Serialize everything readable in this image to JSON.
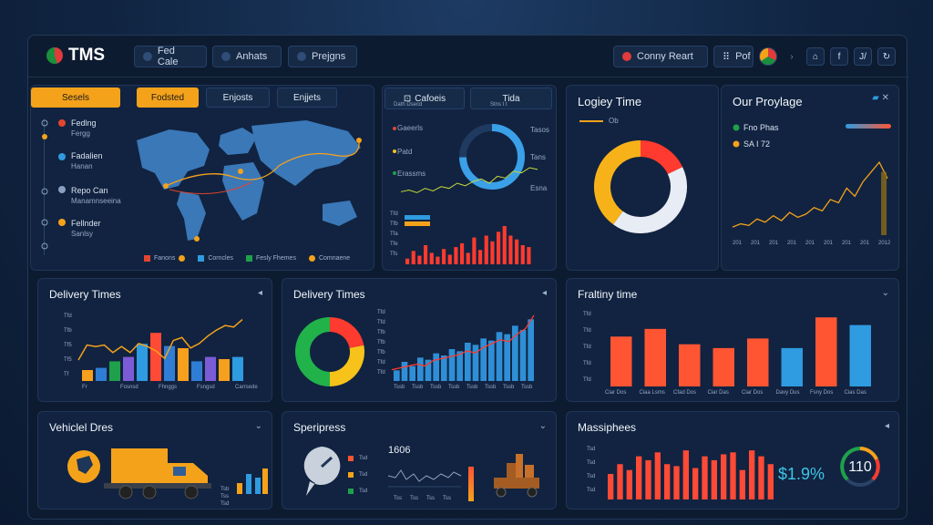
{
  "header": {
    "logo_text": "TMS",
    "nav": [
      "Fed Cale",
      "Anhats",
      "Prejgns"
    ],
    "right_btn": "Conny Reart",
    "right_btn2": "Pof",
    "right_btn3": "f",
    "right_btn4": "J/"
  },
  "map_panel": {
    "side_tab": "Sesels",
    "tabs": [
      "Fodsted",
      "Enjosts",
      "Enjjets"
    ],
    "side_items": [
      {
        "label": "Fedlng",
        "sub": "Fergg"
      },
      {
        "label": "Fadalien",
        "sub": "Hanan"
      },
      {
        "label": "Repo Can",
        "sub": "Manamnseeina"
      },
      {
        "label": "Fellnder",
        "sub": "Sanlsy"
      }
    ],
    "legend": [
      "Fanons",
      "Corncles",
      "Fesly Fhemes",
      "Comnaene"
    ]
  },
  "stats_panel": {
    "tabs": [
      "Cafoeis",
      "Tida"
    ],
    "subtabs": [
      "Dath Dsecd",
      "Stns t t"
    ],
    "labels": [
      "Gaeerls",
      "Patd",
      "Erassms"
    ],
    "right_labels": [
      "Tasos",
      "Tans",
      "Esna"
    ],
    "ticks": [
      "Tfd",
      "Tfb",
      "Tfa",
      "Tfe",
      "Tfs"
    ],
    "bars": [
      6,
      14,
      9,
      20,
      12,
      8,
      16,
      10,
      18,
      22,
      12,
      28,
      15,
      30,
      24,
      34,
      40,
      30,
      26,
      20,
      18
    ],
    "line": [
      8,
      10,
      7,
      12,
      9,
      14,
      12,
      18,
      15,
      20,
      23,
      18,
      26,
      24,
      32,
      30,
      36,
      34
    ]
  },
  "logic_panel": {
    "title": "Logiey Time",
    "legend": "Ob",
    "donut": [
      {
        "color": "#ff3a2e",
        "value": 18
      },
      {
        "color": "#e8ecf4",
        "value": 42
      },
      {
        "color": "#f7b21a",
        "value": 40
      }
    ]
  },
  "prop_panel": {
    "title": "Our Proylage",
    "item1": "Fno Phas",
    "item2": "SA I 72",
    "xticks": [
      "201",
      "201",
      "201",
      "201",
      "201",
      "201",
      "201",
      "201",
      "2012"
    ],
    "line": [
      10,
      14,
      12,
      20,
      16,
      24,
      18,
      28,
      22,
      26,
      34,
      30,
      44,
      40,
      58,
      48,
      66,
      78,
      90,
      70
    ]
  },
  "delivery1": {
    "title": "Delivery Times",
    "yticks": [
      "Tfd",
      "Tfb",
      "Tf5",
      "Tf5",
      "Tf"
    ],
    "xticks": [
      "Fr",
      "Fosnsd",
      "Fhnggs",
      "Fsngsd",
      "Carrsede"
    ],
    "bars": [
      {
        "v": 10,
        "c": "#f7a01d"
      },
      {
        "v": 12,
        "c": "#2f7dd4"
      },
      {
        "v": 18,
        "c": "#1ea14a"
      },
      {
        "v": 22,
        "c": "#7b5cd6"
      },
      {
        "v": 34,
        "c": "#2f9be0"
      },
      {
        "v": 44,
        "c": "#ff4a36"
      },
      {
        "v": 32,
        "c": "#2f7dd4"
      },
      {
        "v": 30,
        "c": "#f7a01d"
      },
      {
        "v": 18,
        "c": "#2f7dd4"
      },
      {
        "v": 22,
        "c": "#7b5cd6"
      },
      {
        "v": 20,
        "c": "#f7a01d"
      },
      {
        "v": 22,
        "c": "#2f9be0"
      }
    ],
    "line": [
      28,
      48,
      46,
      48,
      38,
      46,
      38,
      50,
      46,
      40,
      30,
      54,
      58,
      44,
      50,
      60,
      68,
      74,
      72,
      82
    ]
  },
  "delivery2": {
    "title": "Delivery Times",
    "yticks": [
      "Tfd",
      "Tfd",
      "Tfb",
      "Tfb",
      "Tfb",
      "Tfd",
      "Tfd"
    ],
    "xticks": [
      "Tssb",
      "Tssb",
      "Tssb",
      "Tssb",
      "Tssb",
      "Tssb",
      "Tssb",
      "Tssb"
    ],
    "donut": [
      {
        "color": "#ff3a2e",
        "value": 22
      },
      {
        "color": "#f7c21a",
        "value": 28
      },
      {
        "color": "#21b24a",
        "value": 50
      }
    ],
    "bars": [
      10,
      18,
      14,
      22,
      20,
      26,
      24,
      30,
      28,
      36,
      34,
      40,
      38,
      46,
      44,
      52,
      48,
      58
    ],
    "line": [
      12,
      14,
      16,
      18,
      16,
      22,
      24,
      26,
      28,
      32,
      30,
      36,
      40,
      44,
      42,
      50,
      56,
      70
    ]
  },
  "frafiing": {
    "title": "Fraltiny time",
    "yticks": [
      "Tfd",
      "Tfd",
      "Tfd",
      "Tfd",
      "Tfd"
    ],
    "xticks": [
      "Ciar Dos",
      "Ciaa Lsms",
      "Cfad Dos",
      "Ciar Das",
      "Ciar Dos",
      "Davy Dus",
      "Fsny Dos",
      "Cias Das"
    ],
    "bars": [
      {
        "v": 52,
        "c": "#ff5533"
      },
      {
        "v": 60,
        "c": "#ff5533"
      },
      {
        "v": 44,
        "c": "#ff5533"
      },
      {
        "v": 40,
        "c": "#ff5533"
      },
      {
        "v": 50,
        "c": "#ff5533"
      },
      {
        "v": 40,
        "c": "#2f9be0"
      },
      {
        "v": 72,
        "c": "#ff5533"
      },
      {
        "v": 64,
        "c": "#2f9be0"
      }
    ]
  },
  "vehicle": {
    "title": "Vehiclel Dres",
    "mini_ticks": [
      "Tsb",
      "Tss",
      "Tsd"
    ]
  },
  "speripress": {
    "title": "Speripress",
    "value": "1606",
    "labels": [
      "Tsd",
      "Tsd",
      "Tsd"
    ],
    "ticks": [
      "Tss",
      "Tss",
      "Tss",
      "Tss"
    ]
  },
  "massiphees": {
    "title": "Massiphees",
    "percent": "$1.9%",
    "gauge_value": "110",
    "yticks": [
      "Tsd",
      "Tsd",
      "Tsd",
      "Tsd"
    ],
    "bars": [
      26,
      36,
      30,
      44,
      40,
      48,
      36,
      34,
      50,
      32,
      44,
      40,
      46,
      48,
      30,
      50,
      44,
      36
    ]
  }
}
